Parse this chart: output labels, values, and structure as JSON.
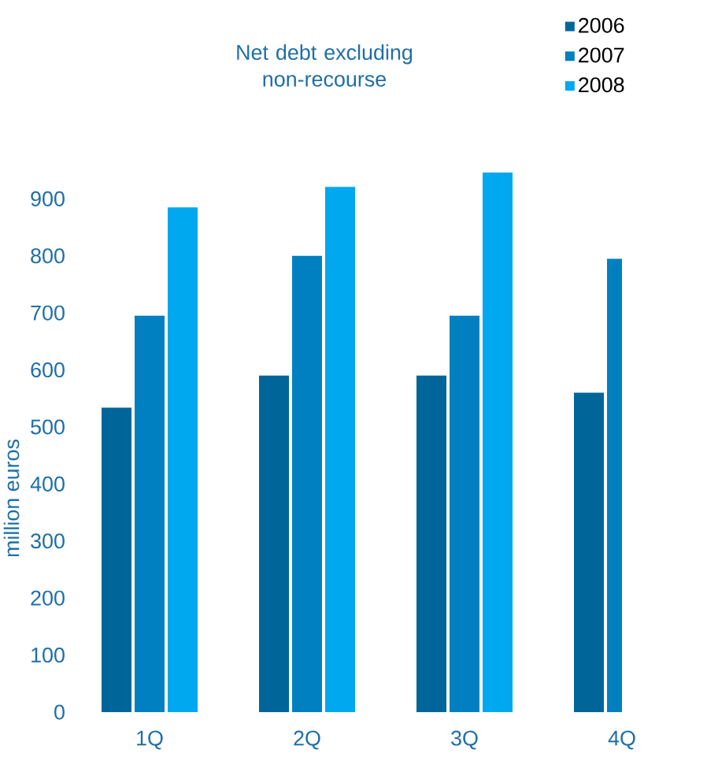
{
  "chart_data": {
    "type": "bar",
    "title": "Net debt excluding non-recourse",
    "ylabel": "million euros",
    "categories": [
      "1Q",
      "2Q",
      "3Q",
      "4Q"
    ],
    "series": [
      {
        "name": "2006",
        "color": "#006699",
        "values": [
          534,
          590,
          590,
          560
        ]
      },
      {
        "name": "2007",
        "color": "#0080c0",
        "values": [
          695,
          800,
          695,
          795
        ]
      },
      {
        "name": "2008",
        "color": "#00a8f0",
        "values": [
          885,
          921,
          946,
          null
        ]
      }
    ],
    "ylim": [
      0,
      960
    ],
    "yticks": [
      0,
      100,
      200,
      300,
      400,
      500,
      600,
      700,
      800,
      900
    ],
    "grid": false,
    "legend": "top right"
  }
}
